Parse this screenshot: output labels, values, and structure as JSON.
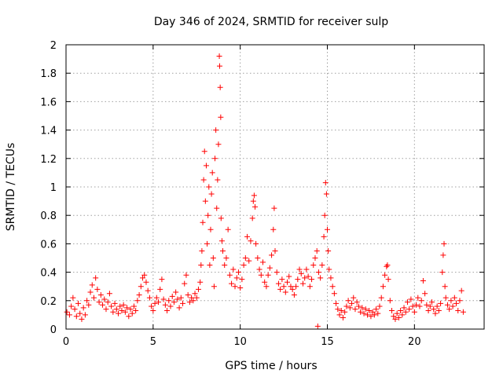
{
  "chart_data": {
    "type": "scatter",
    "title": "Day 346 of 2024, SRMTID for receiver sulp",
    "xlabel": "GPS time / hours",
    "ylabel": "SRMTID / TECUs",
    "xlim": [
      0,
      24
    ],
    "ylim": [
      0,
      2
    ],
    "xticks": [
      0,
      5,
      10,
      15,
      20
    ],
    "yticks": [
      0,
      0.2,
      0.4,
      0.6,
      0.8,
      1,
      1.2,
      1.4,
      1.6,
      1.8,
      2
    ],
    "grid": true,
    "marker": "+",
    "color": "#ff0000",
    "series": [
      {
        "name": "SRMTID",
        "points": [
          [
            0.05,
            0.12
          ],
          [
            0.2,
            0.1
          ],
          [
            0.3,
            0.16
          ],
          [
            0.4,
            0.22
          ],
          [
            0.5,
            0.14
          ],
          [
            0.6,
            0.09
          ],
          [
            0.7,
            0.18
          ],
          [
            0.8,
            0.11
          ],
          [
            0.9,
            0.07
          ],
          [
            1.0,
            0.15
          ],
          [
            1.1,
            0.1
          ],
          [
            1.2,
            0.2
          ],
          [
            1.3,
            0.17
          ],
          [
            1.4,
            0.26
          ],
          [
            1.5,
            0.31
          ],
          [
            1.6,
            0.22
          ],
          [
            1.7,
            0.36
          ],
          [
            1.8,
            0.28
          ],
          [
            1.9,
            0.19
          ],
          [
            2.0,
            0.24
          ],
          [
            2.1,
            0.17
          ],
          [
            2.2,
            0.21
          ],
          [
            2.3,
            0.14
          ],
          [
            2.4,
            0.19
          ],
          [
            2.5,
            0.25
          ],
          [
            2.6,
            0.16
          ],
          [
            2.7,
            0.12
          ],
          [
            2.8,
            0.18
          ],
          [
            2.9,
            0.14
          ],
          [
            3.0,
            0.11
          ],
          [
            3.1,
            0.16
          ],
          [
            3.2,
            0.13
          ],
          [
            3.3,
            0.17
          ],
          [
            3.4,
            0.12
          ],
          [
            3.5,
            0.15
          ],
          [
            3.6,
            0.09
          ],
          [
            3.7,
            0.14
          ],
          [
            3.8,
            0.11
          ],
          [
            3.9,
            0.16
          ],
          [
            4.0,
            0.13
          ],
          [
            4.1,
            0.2
          ],
          [
            4.2,
            0.24
          ],
          [
            4.3,
            0.3
          ],
          [
            4.4,
            0.36
          ],
          [
            4.5,
            0.38
          ],
          [
            4.6,
            0.33
          ],
          [
            4.7,
            0.27
          ],
          [
            4.8,
            0.22
          ],
          [
            4.9,
            0.16
          ],
          [
            5.0,
            0.13
          ],
          [
            5.1,
            0.18
          ],
          [
            5.2,
            0.22
          ],
          [
            5.3,
            0.19
          ],
          [
            5.4,
            0.28
          ],
          [
            5.5,
            0.35
          ],
          [
            5.6,
            0.21
          ],
          [
            5.7,
            0.17
          ],
          [
            5.8,
            0.13
          ],
          [
            5.9,
            0.2
          ],
          [
            6.0,
            0.16
          ],
          [
            6.1,
            0.23
          ],
          [
            6.2,
            0.19
          ],
          [
            6.3,
            0.26
          ],
          [
            6.4,
            0.21
          ],
          [
            6.5,
            0.15
          ],
          [
            6.6,
            0.22
          ],
          [
            6.7,
            0.18
          ],
          [
            6.8,
            0.32
          ],
          [
            6.9,
            0.38
          ],
          [
            7.0,
            0.24
          ],
          [
            7.1,
            0.19
          ],
          [
            7.2,
            0.22
          ],
          [
            7.3,
            0.2
          ],
          [
            7.4,
            0.25
          ],
          [
            7.5,
            0.22
          ],
          [
            7.6,
            0.28
          ],
          [
            7.7,
            0.33
          ],
          [
            7.75,
            0.45
          ],
          [
            7.8,
            0.55
          ],
          [
            7.85,
            0.75
          ],
          [
            7.9,
            1.05
          ],
          [
            7.95,
            1.25
          ],
          [
            8.0,
            0.9
          ],
          [
            8.05,
            1.15
          ],
          [
            8.1,
            0.6
          ],
          [
            8.15,
            0.8
          ],
          [
            8.2,
            1.0
          ],
          [
            8.25,
            0.45
          ],
          [
            8.3,
            0.7
          ],
          [
            8.35,
            0.95
          ],
          [
            8.4,
            1.1
          ],
          [
            8.45,
            0.5
          ],
          [
            8.5,
            0.3
          ],
          [
            8.55,
            1.2
          ],
          [
            8.6,
            1.4
          ],
          [
            8.65,
            0.85
          ],
          [
            8.7,
            1.05
          ],
          [
            8.75,
            1.3
          ],
          [
            8.8,
            1.92
          ],
          [
            8.82,
            1.85
          ],
          [
            8.85,
            1.7
          ],
          [
            8.88,
            1.49
          ],
          [
            8.9,
            0.78
          ],
          [
            8.95,
            0.62
          ],
          [
            9.0,
            0.55
          ],
          [
            9.1,
            0.45
          ],
          [
            9.2,
            0.5
          ],
          [
            9.3,
            0.7
          ],
          [
            9.4,
            0.38
          ],
          [
            9.5,
            0.32
          ],
          [
            9.6,
            0.42
          ],
          [
            9.7,
            0.3
          ],
          [
            9.8,
            0.36
          ],
          [
            9.9,
            0.4
          ],
          [
            10.0,
            0.29
          ],
          [
            10.1,
            0.35
          ],
          [
            10.2,
            0.45
          ],
          [
            10.3,
            0.5
          ],
          [
            10.4,
            0.65
          ],
          [
            10.5,
            0.48
          ],
          [
            10.6,
            0.62
          ],
          [
            10.7,
            0.78
          ],
          [
            10.75,
            0.9
          ],
          [
            10.8,
            0.94
          ],
          [
            10.85,
            0.86
          ],
          [
            10.9,
            0.6
          ],
          [
            11.0,
            0.5
          ],
          [
            11.1,
            0.42
          ],
          [
            11.2,
            0.38
          ],
          [
            11.3,
            0.47
          ],
          [
            11.4,
            0.33
          ],
          [
            11.5,
            0.3
          ],
          [
            11.6,
            0.38
          ],
          [
            11.7,
            0.43
          ],
          [
            11.8,
            0.52
          ],
          [
            11.9,
            0.7
          ],
          [
            11.95,
            0.85
          ],
          [
            12.0,
            0.55
          ],
          [
            12.1,
            0.4
          ],
          [
            12.2,
            0.32
          ],
          [
            12.3,
            0.28
          ],
          [
            12.4,
            0.35
          ],
          [
            12.5,
            0.3
          ],
          [
            12.6,
            0.26
          ],
          [
            12.7,
            0.33
          ],
          [
            12.8,
            0.37
          ],
          [
            12.9,
            0.3
          ],
          [
            13.0,
            0.28
          ],
          [
            13.1,
            0.24
          ],
          [
            13.2,
            0.3
          ],
          [
            13.3,
            0.35
          ],
          [
            13.4,
            0.42
          ],
          [
            13.5,
            0.39
          ],
          [
            13.6,
            0.32
          ],
          [
            13.7,
            0.36
          ],
          [
            13.8,
            0.42
          ],
          [
            13.9,
            0.37
          ],
          [
            14.0,
            0.3
          ],
          [
            14.1,
            0.35
          ],
          [
            14.2,
            0.45
          ],
          [
            14.3,
            0.5
          ],
          [
            14.4,
            0.55
          ],
          [
            14.45,
            0.02
          ],
          [
            14.5,
            0.4
          ],
          [
            14.6,
            0.36
          ],
          [
            14.7,
            0.45
          ],
          [
            14.8,
            0.65
          ],
          [
            14.85,
            0.8
          ],
          [
            14.9,
            1.03
          ],
          [
            14.95,
            0.95
          ],
          [
            15.0,
            0.7
          ],
          [
            15.05,
            0.55
          ],
          [
            15.1,
            0.42
          ],
          [
            15.2,
            0.36
          ],
          [
            15.3,
            0.3
          ],
          [
            15.4,
            0.25
          ],
          [
            15.5,
            0.18
          ],
          [
            15.6,
            0.14
          ],
          [
            15.7,
            0.1
          ],
          [
            15.8,
            0.13
          ],
          [
            15.9,
            0.08
          ],
          [
            16.0,
            0.12
          ],
          [
            16.1,
            0.16
          ],
          [
            16.2,
            0.2
          ],
          [
            16.3,
            0.15
          ],
          [
            16.4,
            0.18
          ],
          [
            16.5,
            0.22
          ],
          [
            16.6,
            0.14
          ],
          [
            16.7,
            0.19
          ],
          [
            16.8,
            0.16
          ],
          [
            16.9,
            0.12
          ],
          [
            17.0,
            0.15
          ],
          [
            17.1,
            0.11
          ],
          [
            17.2,
            0.14
          ],
          [
            17.3,
            0.1
          ],
          [
            17.4,
            0.13
          ],
          [
            17.5,
            0.09
          ],
          [
            17.6,
            0.12
          ],
          [
            17.7,
            0.1
          ],
          [
            17.8,
            0.14
          ],
          [
            17.9,
            0.11
          ],
          [
            18.0,
            0.16
          ],
          [
            18.1,
            0.22
          ],
          [
            18.2,
            0.3
          ],
          [
            18.3,
            0.38
          ],
          [
            18.4,
            0.44
          ],
          [
            18.45,
            0.45
          ],
          [
            18.5,
            0.35
          ],
          [
            18.6,
            0.2
          ],
          [
            18.7,
            0.13
          ],
          [
            18.8,
            0.09
          ],
          [
            18.9,
            0.07
          ],
          [
            19.0,
            0.11
          ],
          [
            19.1,
            0.08
          ],
          [
            19.2,
            0.13
          ],
          [
            19.3,
            0.1
          ],
          [
            19.4,
            0.15
          ],
          [
            19.5,
            0.12
          ],
          [
            19.6,
            0.19
          ],
          [
            19.7,
            0.14
          ],
          [
            19.8,
            0.21
          ],
          [
            19.9,
            0.16
          ],
          [
            20.0,
            0.12
          ],
          [
            20.1,
            0.17
          ],
          [
            20.2,
            0.22
          ],
          [
            20.3,
            0.16
          ],
          [
            20.4,
            0.2
          ],
          [
            20.5,
            0.34
          ],
          [
            20.6,
            0.25
          ],
          [
            20.7,
            0.17
          ],
          [
            20.8,
            0.13
          ],
          [
            20.9,
            0.16
          ],
          [
            21.0,
            0.19
          ],
          [
            21.1,
            0.14
          ],
          [
            21.2,
            0.11
          ],
          [
            21.3,
            0.16
          ],
          [
            21.4,
            0.13
          ],
          [
            21.5,
            0.18
          ],
          [
            21.6,
            0.4
          ],
          [
            21.65,
            0.52
          ],
          [
            21.7,
            0.6
          ],
          [
            21.75,
            0.3
          ],
          [
            21.8,
            0.22
          ],
          [
            21.9,
            0.17
          ],
          [
            22.0,
            0.14
          ],
          [
            22.1,
            0.2
          ],
          [
            22.2,
            0.16
          ],
          [
            22.3,
            0.22
          ],
          [
            22.4,
            0.18
          ],
          [
            22.5,
            0.13
          ],
          [
            22.6,
            0.2
          ],
          [
            22.7,
            0.27
          ],
          [
            22.8,
            0.12
          ]
        ]
      }
    ]
  }
}
